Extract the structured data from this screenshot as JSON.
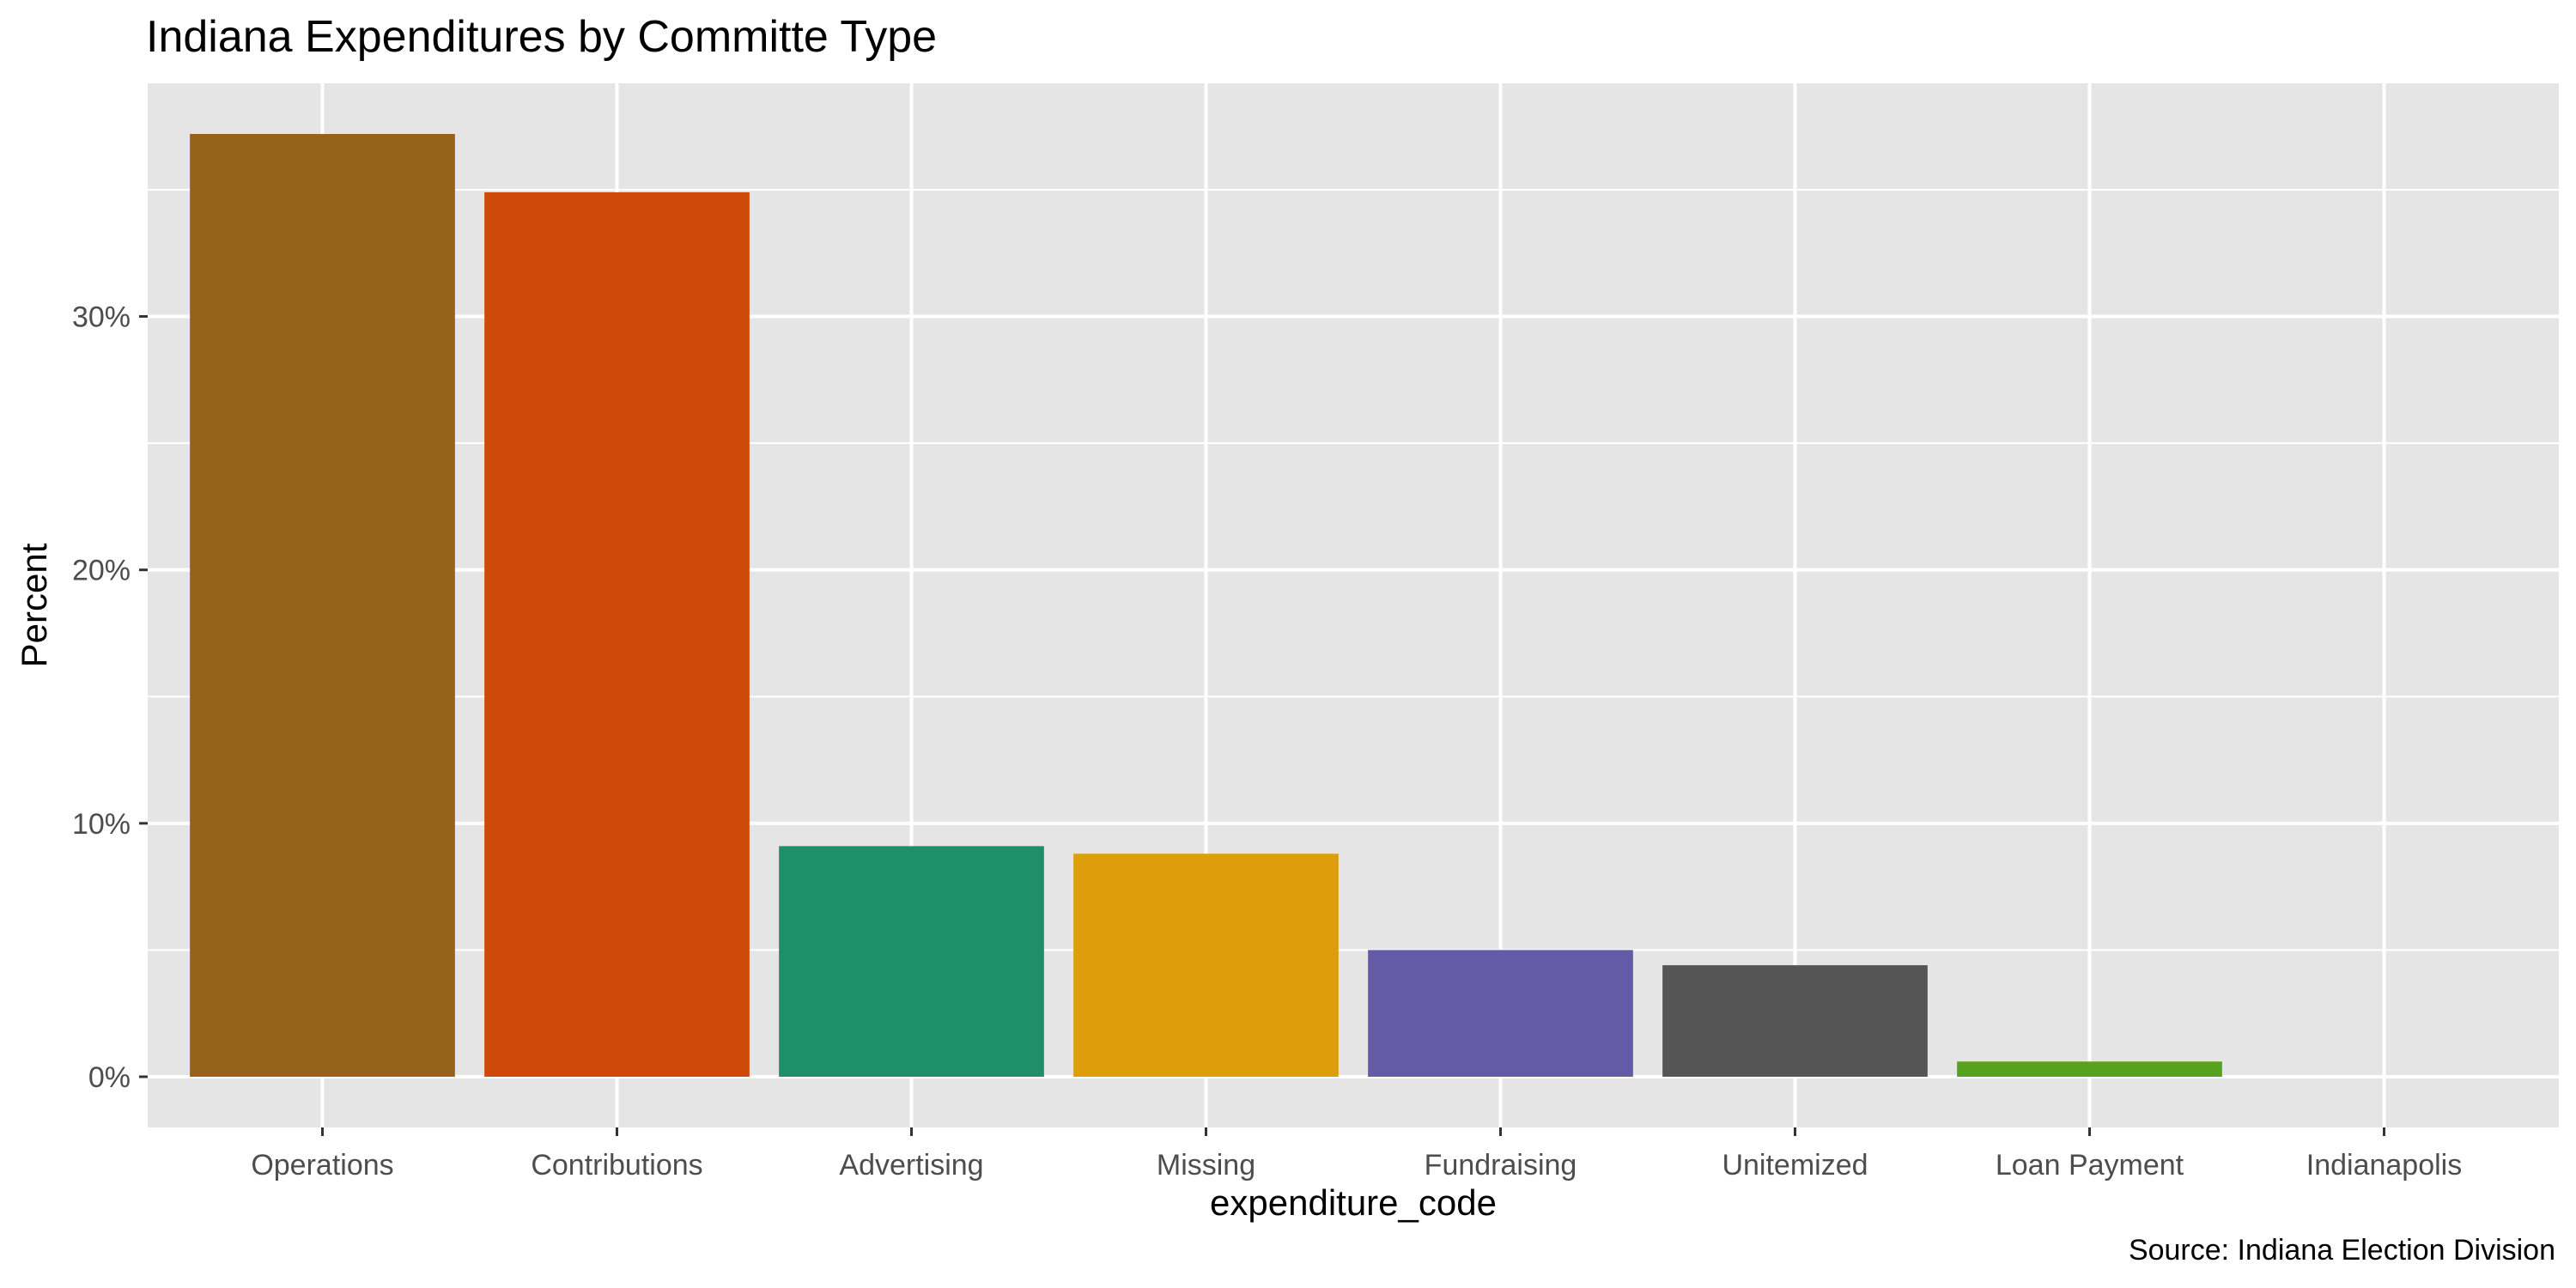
{
  "chart_data": {
    "type": "bar",
    "title": "Indiana Expenditures by Committe Type",
    "xlabel": "expenditure_code",
    "ylabel": "Percent",
    "caption": "Source: Indiana Election Division",
    "categories": [
      "Operations",
      "Contributions",
      "Advertising",
      "Missing",
      "Fundraising",
      "Unitemized",
      "Loan Payment",
      "Indianapolis"
    ],
    "values": [
      37.2,
      34.9,
      9.1,
      8.8,
      5.0,
      4.4,
      0.6,
      0.0
    ],
    "colors": [
      "#95621A",
      "#CE4A0B",
      "#1E8F68",
      "#DE9D0A",
      "#635BA6",
      "#555555",
      "#58A11E",
      "#666666"
    ],
    "ylim": [
      -2.0,
      39.2
    ],
    "yticks": [
      0,
      10,
      20,
      30
    ],
    "ytick_labels": [
      "0%",
      "10%",
      "20%",
      "30%"
    ],
    "grid": true,
    "panel_background": "#E5E5E5",
    "grid_color": "#FFFFFF",
    "legend": "none"
  }
}
